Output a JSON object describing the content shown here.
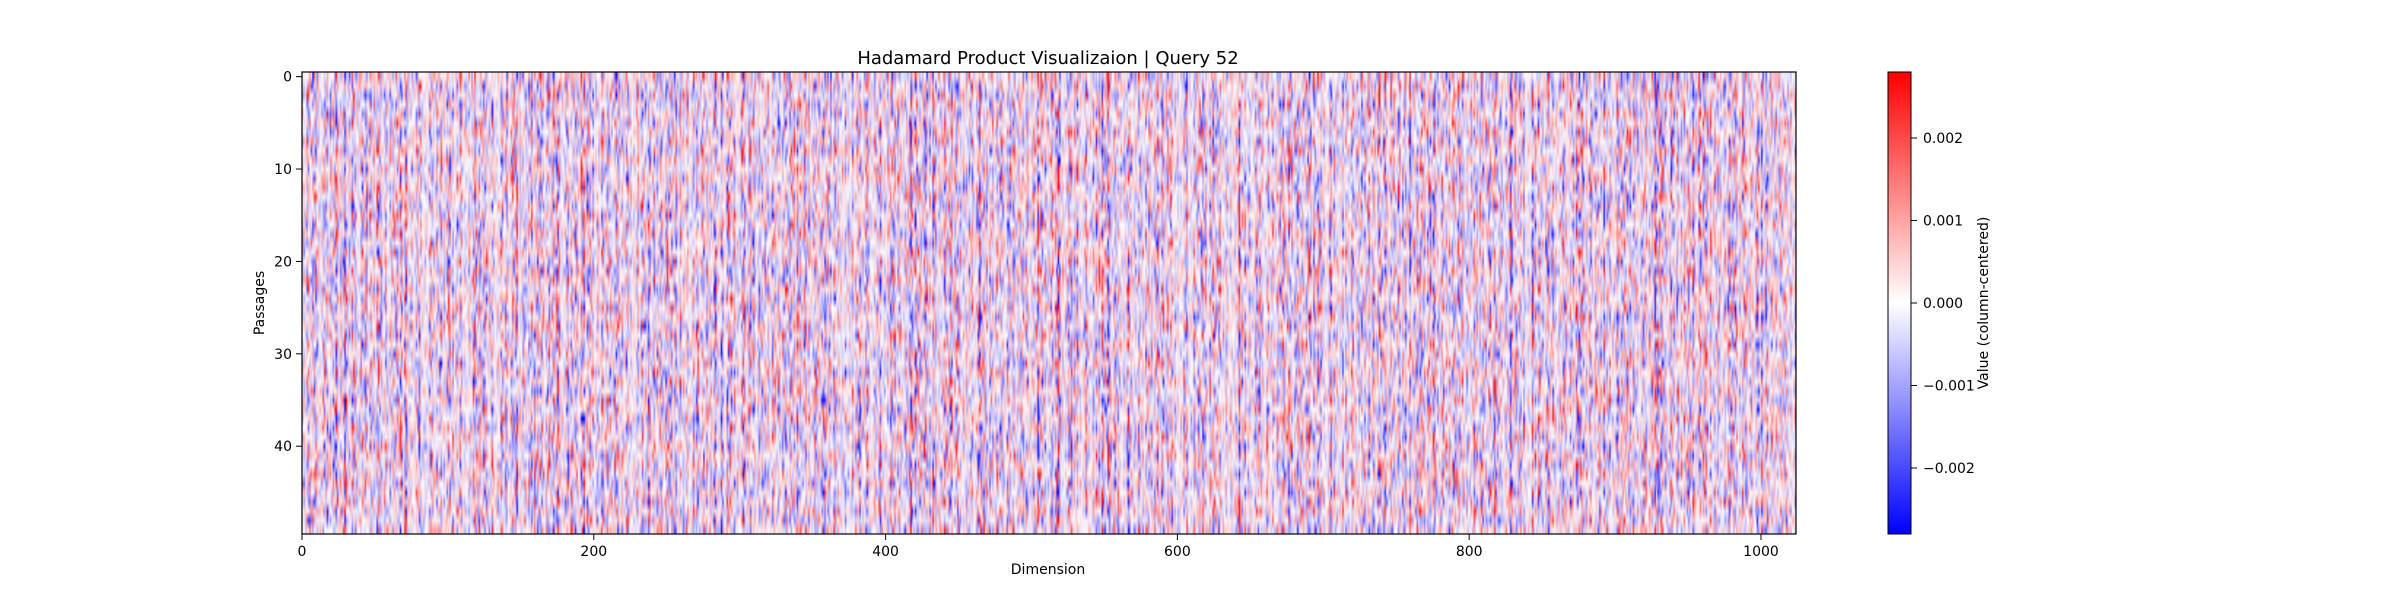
{
  "chart_data": {
    "type": "heatmap",
    "title": "Hadamard Product Visualizaion | Query 52",
    "xlabel": "Dimension",
    "ylabel": "Passages",
    "x_range": [
      0,
      1024
    ],
    "y_range": [
      0,
      50
    ],
    "y_inverted": true,
    "x_ticks": [
      0,
      200,
      400,
      600,
      800,
      1000
    ],
    "y_ticks": [
      0,
      10,
      20,
      30,
      40
    ],
    "grid": false,
    "colorbar": {
      "label": "Value (column-centered)",
      "colormap": "bwr",
      "vmin": -0.0028,
      "vmax": 0.0028,
      "ticks": [
        0.002,
        0.001,
        0.0,
        -0.001,
        -0.002
      ],
      "tick_labels": [
        "0.002",
        "0.001",
        "0.000",
        "−0.001",
        "−0.002"
      ]
    },
    "colors": {
      "low": "#0000ff",
      "mid": "#ffffff",
      "high": "#ff0000"
    }
  }
}
